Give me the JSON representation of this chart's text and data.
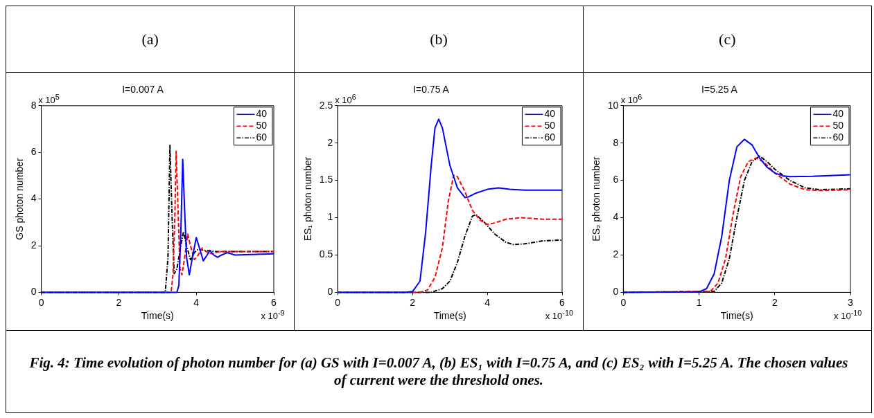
{
  "chart_data": [
    {
      "type": "line",
      "title": "(a)",
      "subtitle": "I=0.007 A",
      "xlabel": "Time(s)",
      "ylabel": "GS photon number",
      "annotations": [
        "x 10$^{5}$",
        "x 10$^{-9}$",
        "Fig. 4: Time evolution of photon number for (a) GS with I=0.007 A, (b) ES₁ with I=0.75 A, and (c) ES₂ with I=5.25 A. The chosen values of current were the threshold ones."
      ],
      "xlim": [
        0,
        6
      ],
      "xticks": [
        0,
        2,
        4,
        6
      ],
      "ylim": [
        0,
        8
      ],
      "yticks": [
        0,
        2,
        4,
        6,
        8
      ],
      "grid": false,
      "legend": "top right",
      "marker": "none",
      "series": [
        {
          "name": "40",
          "color": "#0000ff",
          "line_style": "solid",
          "x": [
            0,
            3.5,
            3.55,
            3.6,
            3.65,
            3.7,
            3.75,
            3.82,
            3.9,
            4.0,
            4.1,
            4.18,
            4.28,
            4.35,
            4.45,
            4.55,
            4.65,
            4.8,
            5.0,
            6
          ],
          "values": [
            0,
            0,
            0.3,
            2.5,
            5.7,
            3.5,
            1.5,
            0.75,
            1.5,
            2.35,
            1.8,
            1.35,
            1.6,
            1.8,
            1.6,
            1.5,
            1.6,
            1.7,
            1.6,
            1.65
          ]
        },
        {
          "name": "50",
          "color": "#ff0000",
          "line_style": "dashed",
          "x": [
            0,
            3.35,
            3.4,
            3.45,
            3.48,
            3.53,
            3.58,
            3.63,
            3.7,
            3.78,
            3.85,
            3.95,
            4.05,
            4.15,
            4.25,
            4.4,
            4.6,
            5,
            6
          ],
          "values": [
            0,
            0,
            0.8,
            3.5,
            6.05,
            3.5,
            1.0,
            0.75,
            1.5,
            2.5,
            2.0,
            1.4,
            1.6,
            1.9,
            1.75,
            1.65,
            1.75,
            1.75,
            1.75
          ]
        },
        {
          "name": "60",
          "color": "#000000",
          "line_style": "dotted",
          "x": [
            0,
            3.2,
            3.27,
            3.32,
            3.38,
            3.43,
            3.5,
            3.6,
            3.67,
            3.75,
            3.85,
            3.95,
            4.05,
            4.2,
            4.5,
            6
          ],
          "values": [
            0,
            0,
            1.5,
            6.3,
            3,
            0.8,
            1.0,
            2.0,
            2.6,
            2.0,
            1.4,
            1.7,
            1.85,
            1.8,
            1.75,
            1.75
          ]
        }
      ]
    },
    {
      "type": "line",
      "title": "(b)",
      "subtitle": "I=0.75 A",
      "xlabel": "Time(s)",
      "ylabel": "ES₁ photon number",
      "annotations": [
        "x 10$^{6}$",
        "x 10$^{-10}$"
      ],
      "xlim": [
        0,
        6
      ],
      "xticks": [
        0,
        2,
        4,
        6
      ],
      "ylim": [
        0,
        2.5
      ],
      "yticks": [
        0,
        0.5,
        1,
        1.5,
        2,
        2.5
      ],
      "grid": false,
      "legend": "top right",
      "marker": "none",
      "series": [
        {
          "name": "40",
          "color": "#0000ff",
          "line_style": "solid",
          "x": [
            0,
            1.8,
            2.0,
            2.2,
            2.35,
            2.5,
            2.6,
            2.7,
            2.8,
            3.0,
            3.2,
            3.4,
            3.5,
            3.7,
            4.0,
            4.3,
            4.6,
            5,
            6
          ],
          "values": [
            0,
            0,
            0.01,
            0.15,
            0.8,
            1.7,
            2.2,
            2.32,
            2.2,
            1.7,
            1.4,
            1.27,
            1.28,
            1.33,
            1.38,
            1.4,
            1.38,
            1.37,
            1.37
          ]
        },
        {
          "name": "50",
          "color": "#ff0000",
          "line_style": "dashed",
          "x": [
            0,
            2.2,
            2.4,
            2.6,
            2.8,
            2.95,
            3.1,
            3.2,
            3.4,
            3.6,
            3.8,
            4.0,
            4.2,
            4.5,
            4.9,
            5.5,
            6
          ],
          "values": [
            0,
            0,
            0.03,
            0.2,
            0.6,
            1.2,
            1.57,
            1.55,
            1.35,
            1.1,
            0.97,
            0.91,
            0.93,
            0.98,
            1.0,
            0.98,
            0.98
          ]
        },
        {
          "name": "60",
          "color": "#000000",
          "line_style": "dotted",
          "x": [
            0,
            2.5,
            2.8,
            3.0,
            3.2,
            3.4,
            3.6,
            3.7,
            3.9,
            4.2,
            4.5,
            4.7,
            5.0,
            5.5,
            6
          ],
          "values": [
            0,
            0,
            0.05,
            0.15,
            0.4,
            0.75,
            1.02,
            1.04,
            0.95,
            0.78,
            0.67,
            0.64,
            0.65,
            0.69,
            0.7
          ]
        }
      ]
    },
    {
      "type": "line",
      "title": "(c)",
      "subtitle": "I=5.25 A",
      "xlabel": "Time(s)",
      "ylabel": "ES₂ photon number",
      "annotations": [
        "x 10$^{6}$",
        "x 10$^{-10}$"
      ],
      "xlim": [
        0,
        3
      ],
      "xticks": [
        0,
        1,
        2,
        3
      ],
      "ylim": [
        0,
        10
      ],
      "yticks": [
        0,
        2,
        4,
        6,
        8,
        10
      ],
      "grid": false,
      "legend": "top right",
      "marker": "none",
      "series": [
        {
          "name": "40",
          "color": "#0000ff",
          "line_style": "solid",
          "x": [
            0,
            1.0,
            1.1,
            1.2,
            1.3,
            1.4,
            1.5,
            1.6,
            1.7,
            1.8,
            1.9,
            2.0,
            2.1,
            2.2,
            2.5,
            3
          ],
          "values": [
            0,
            0.02,
            0.2,
            1.0,
            3.0,
            6.0,
            7.8,
            8.2,
            7.9,
            7.2,
            6.7,
            6.4,
            6.25,
            6.2,
            6.22,
            6.3
          ]
        },
        {
          "name": "50",
          "color": "#ff0000",
          "line_style": "dashed",
          "x": [
            0,
            1.15,
            1.25,
            1.35,
            1.45,
            1.55,
            1.65,
            1.75,
            1.85,
            2.0,
            2.2,
            2.4,
            2.6,
            3
          ],
          "values": [
            0,
            0.05,
            0.5,
            1.8,
            4.2,
            6.2,
            7.0,
            7.2,
            7.0,
            6.4,
            5.8,
            5.5,
            5.45,
            5.5
          ]
        },
        {
          "name": "60",
          "color": "#000000",
          "line_style": "dotted",
          "x": [
            0,
            1.2,
            1.3,
            1.4,
            1.5,
            1.6,
            1.7,
            1.8,
            1.9,
            2.0,
            2.2,
            2.4,
            2.6,
            3
          ],
          "values": [
            0,
            0.05,
            0.5,
            1.8,
            4.0,
            6.0,
            7.0,
            7.3,
            7.0,
            6.6,
            6.0,
            5.6,
            5.5,
            5.55
          ]
        }
      ]
    }
  ]
}
